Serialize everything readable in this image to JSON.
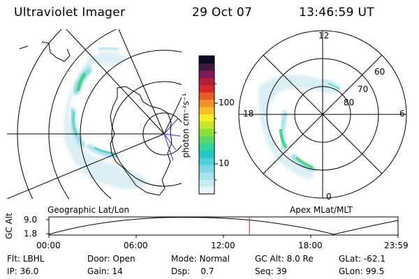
{
  "header": {
    "instrument": "Ultraviolet Imager",
    "date": "29 Oct 07",
    "time": "13:46:59 UT"
  },
  "colorbar": {
    "unit_label": "photon cm⁻²s⁻¹",
    "ticks": [
      "100",
      "10"
    ],
    "colors": [
      "#e8f6fb",
      "#c9ecf3",
      "#a6e2ec",
      "#7fd8e3",
      "#4fd0d9",
      "#2ac7c0",
      "#34d39a",
      "#5ad964",
      "#8de03c",
      "#c4e62c",
      "#f2ee28",
      "#f7c02a",
      "#f2902a",
      "#e85a28",
      "#d62828",
      "#b01f3c",
      "#7e1a58",
      "#3a1a3f",
      "#0c0c28"
    ]
  },
  "left_map": {
    "label": "Geographic Lat/Lon"
  },
  "right_map": {
    "label": "Apex MLat/MLT",
    "mlt_labels": {
      "top": "12",
      "left": "18",
      "right": "6",
      "bottom": "0"
    },
    "lat_labels": [
      "60",
      "70",
      "80"
    ]
  },
  "altitude_plot": {
    "ylabel": "GC Alt",
    "yticks": [
      "9.0",
      "1.8"
    ],
    "xticks": [
      "00:00",
      "06:00",
      "12:00",
      "18:00",
      "23:59"
    ],
    "current_time_marker": "13:47",
    "marker_color": "#d62020"
  },
  "status": {
    "row1": [
      {
        "label": "Flt:",
        "value": "LBHL"
      },
      {
        "label": "Door:",
        "value": "Open"
      },
      {
        "label": "Mode:",
        "value": "Normal"
      },
      {
        "label": "GC Alt:",
        "value": "8.0 Re"
      },
      {
        "label": "GLat:",
        "value": "-62.1"
      }
    ],
    "row2": [
      {
        "label": "IP:",
        "value": "36.0"
      },
      {
        "label": "Gain:",
        "value": "14"
      },
      {
        "label": "Dsp:",
        "value": "0.7"
      },
      {
        "label": "Seq:",
        "value": "39"
      },
      {
        "label": "GLon:",
        "value": "99.5"
      }
    ]
  }
}
